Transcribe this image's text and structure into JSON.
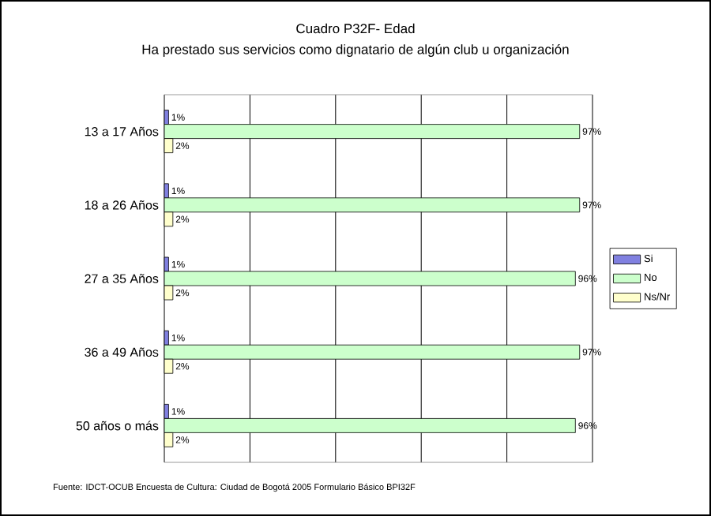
{
  "chart_data": {
    "type": "bar",
    "orientation": "horizontal",
    "title": "Cuadro P32F- Edad",
    "subtitle": "Ha prestado sus servicios como dignatario de algún club u organización",
    "categories": [
      "13 a 17 Años",
      "18 a 26 Años",
      "27 a 35 Años",
      "36 a 49 Años",
      "50 años o más"
    ],
    "series": [
      {
        "name": "Si",
        "color": "#8080e0",
        "values": [
          1,
          1,
          1,
          1,
          1
        ],
        "value_labels": [
          "1%",
          "1%",
          "1%",
          "1%",
          "1%"
        ]
      },
      {
        "name": "No",
        "color": "#ccffcc",
        "values": [
          97,
          97,
          96,
          97,
          96
        ],
        "value_labels": [
          "97%",
          "97%",
          "96%",
          "97%",
          "96%"
        ]
      },
      {
        "name": "Ns/Nr",
        "color": "#ffffcc",
        "values": [
          2,
          2,
          2,
          2,
          2
        ],
        "value_labels": [
          "2%",
          "2%",
          "2%",
          "2%",
          "2%"
        ]
      }
    ],
    "xlim": [
      0,
      100
    ],
    "xticks": [
      {
        "value": 0,
        "label": null
      },
      {
        "value": 20,
        "label": null
      },
      {
        "value": 40,
        "label": null
      },
      {
        "value": 60,
        "label": null
      },
      {
        "value": 80,
        "label": null
      },
      {
        "value": 100,
        "label": null
      }
    ],
    "tick_labels": "y",
    "grid": "x",
    "legend": "right",
    "annotations": [
      "Fuente: IDCT-OCUB Encuesta de Cultura: Ciudad de Bogotá 2005 Formulario Básico BPI32F"
    ]
  }
}
